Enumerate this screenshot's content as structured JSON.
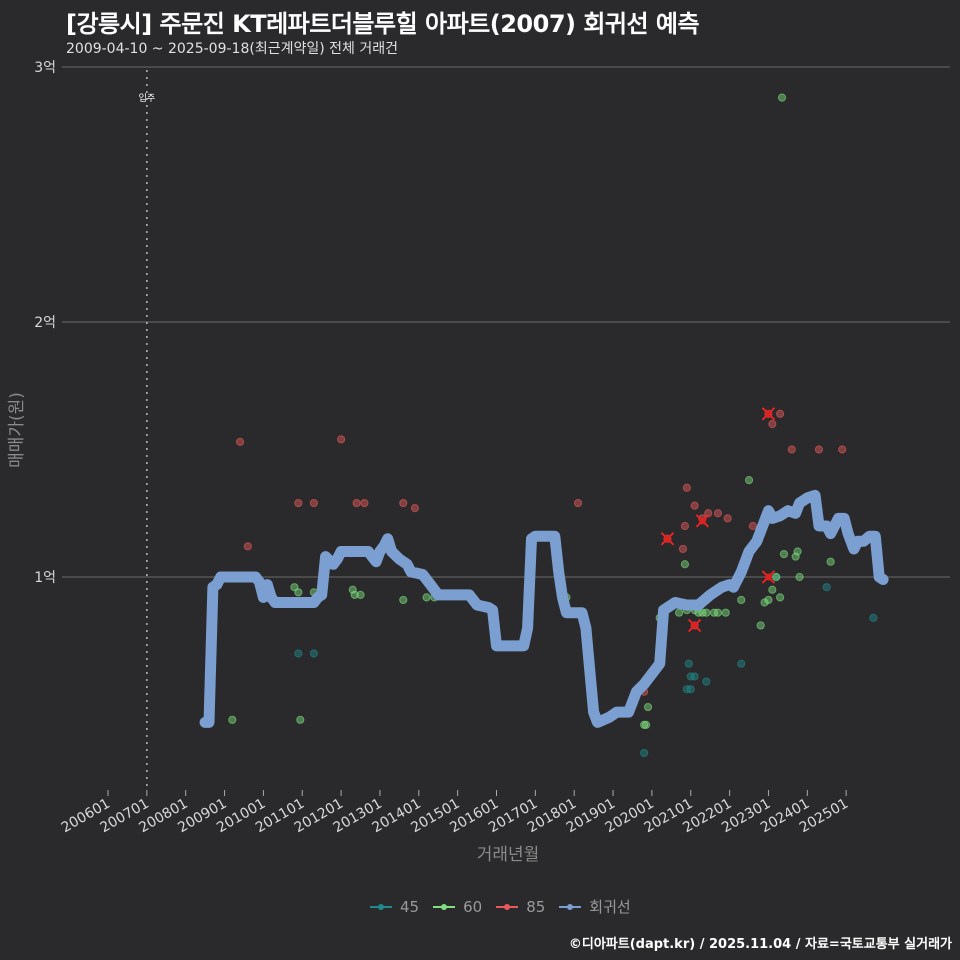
{
  "header": {
    "title": "[강릉시] 주문진 KT레파트더블루힐 아파트(2007) 회귀선 예측",
    "subtitle": "2009-04-10 ~ 2025-09-18(최근계약일) 전체 거래건"
  },
  "footer": {
    "credit": "©디아파트(dapt.kr) / 2025.11.04 / 자료=국토교통부 실거래가"
  },
  "colors": {
    "background": "#2a2a2c",
    "s45": "#1f8a8a",
    "s60": "#7ee07e",
    "s85": "#e85a5a",
    "regression": "#7b9fd0",
    "grid": "#6a6a6a",
    "marker": "#ff2020"
  },
  "legend": [
    {
      "label": "45",
      "color": "#1f8a8a"
    },
    {
      "label": "60",
      "color": "#7ee07e"
    },
    {
      "label": "85",
      "color": "#e85a5a"
    },
    {
      "label": "회귀선",
      "color": "#7b9fd0"
    }
  ],
  "chart_data": {
    "type": "scatter",
    "title": "[강릉시] 주문진 KT레파트더블루힐 아파트(2007) 회귀선 예측",
    "subtitle": "2009-04-10 ~ 2025-09-18(최근계약일) 전체 거래건",
    "xlabel": "거래년월",
    "ylabel": "매매가(원)",
    "x_ticks": [
      "200601",
      "200701",
      "200801",
      "200901",
      "201001",
      "201101",
      "201201",
      "201301",
      "201401",
      "201501",
      "201601",
      "201701",
      "201801",
      "201901",
      "202001",
      "202101",
      "202201",
      "202301",
      "202401",
      "202501"
    ],
    "y_ticks": [
      {
        "value": 100000000,
        "label": "1억"
      },
      {
        "value": 200000000,
        "label": "2억"
      },
      {
        "value": 300000000,
        "label": "3억"
      }
    ],
    "ylim": [
      13000000,
      300000000
    ],
    "grid": true,
    "legend_position": "bottom",
    "annotations": [
      {
        "x": 2007.0,
        "label": "입주",
        "type": "vline-dotted"
      }
    ],
    "series": [
      {
        "name": "45",
        "color": "#1f8a8a",
        "points": [
          [
            2010.9,
            70000000
          ],
          [
            2011.3,
            70000000
          ],
          [
            2019.8,
            31000000
          ],
          [
            2020.9,
            56000000
          ],
          [
            2021.0,
            56000000
          ],
          [
            2021.0,
            61000000
          ],
          [
            2021.1,
            61000000
          ],
          [
            2020.95,
            66000000
          ],
          [
            2021.4,
            59000000
          ],
          [
            2022.3,
            66000000
          ],
          [
            2023.2,
            100000000
          ],
          [
            2024.5,
            96000000
          ],
          [
            2025.7,
            84000000
          ]
        ]
      },
      {
        "name": "60",
        "color": "#7ee07e",
        "points": [
          [
            2009.2,
            44000000
          ],
          [
            2010.8,
            96000000
          ],
          [
            2010.9,
            94000000
          ],
          [
            2010.95,
            44000000
          ],
          [
            2011.3,
            94000000
          ],
          [
            2012.3,
            95000000
          ],
          [
            2012.35,
            93000000
          ],
          [
            2012.5,
            93000000
          ],
          [
            2013.6,
            91000000
          ],
          [
            2014.2,
            92000000
          ],
          [
            2014.4,
            92000000
          ],
          [
            2017.8,
            92000000
          ],
          [
            2019.8,
            42000000
          ],
          [
            2019.85,
            42000000
          ],
          [
            2019.9,
            49000000
          ],
          [
            2020.2,
            84000000
          ],
          [
            2020.3,
            84000000
          ],
          [
            2020.7,
            86000000
          ],
          [
            2020.85,
            105000000
          ],
          [
            2020.9,
            87000000
          ],
          [
            2021.1,
            87000000
          ],
          [
            2021.2,
            86000000
          ],
          [
            2021.3,
            86000000
          ],
          [
            2021.4,
            86000000
          ],
          [
            2021.6,
            86000000
          ],
          [
            2021.7,
            86000000
          ],
          [
            2021.9,
            86000000
          ],
          [
            2022.3,
            91000000
          ],
          [
            2022.5,
            138000000
          ],
          [
            2022.8,
            81000000
          ],
          [
            2022.9,
            90000000
          ],
          [
            2023.0,
            91000000
          ],
          [
            2023.1,
            95000000
          ],
          [
            2023.2,
            100000000
          ],
          [
            2023.3,
            92000000
          ],
          [
            2023.4,
            109000000
          ],
          [
            2023.7,
            108000000
          ],
          [
            2023.75,
            110000000
          ],
          [
            2023.8,
            100000000
          ],
          [
            2024.6,
            106000000
          ],
          [
            2023.35,
            288000000
          ]
        ]
      },
      {
        "name": "85",
        "color": "#e85a5a",
        "points": [
          [
            2009.4,
            153000000
          ],
          [
            2009.6,
            112000000
          ],
          [
            2010.9,
            129000000
          ],
          [
            2011.3,
            129000000
          ],
          [
            2012.0,
            154000000
          ],
          [
            2012.4,
            129000000
          ],
          [
            2012.6,
            129000000
          ],
          [
            2013.6,
            129000000
          ],
          [
            2013.9,
            127000000
          ],
          [
            2018.1,
            129000000
          ],
          [
            2019.8,
            55000000
          ],
          [
            2020.4,
            115000000
          ],
          [
            2020.8,
            111000000
          ],
          [
            2020.85,
            120000000
          ],
          [
            2020.9,
            135000000
          ],
          [
            2021.1,
            128000000
          ],
          [
            2021.3,
            123000000
          ],
          [
            2021.45,
            125000000
          ],
          [
            2021.7,
            125000000
          ],
          [
            2021.95,
            123000000
          ],
          [
            2022.6,
            120000000
          ],
          [
            2023.0,
            164000000
          ],
          [
            2023.1,
            160000000
          ],
          [
            2023.3,
            164000000
          ],
          [
            2023.6,
            150000000
          ],
          [
            2024.3,
            150000000
          ],
          [
            2024.9,
            150000000
          ],
          [
            2021.1,
            81000000
          ]
        ]
      },
      {
        "name": "회귀선",
        "color": "#7b9fd0",
        "type": "line",
        "points": [
          [
            2008.5,
            43000000
          ],
          [
            2008.6,
            43000000
          ],
          [
            2008.7,
            96000000
          ],
          [
            2008.8,
            97000000
          ],
          [
            2008.9,
            100000000
          ],
          [
            2009.8,
            100000000
          ],
          [
            2009.9,
            98000000
          ],
          [
            2010.0,
            92000000
          ],
          [
            2010.1,
            97000000
          ],
          [
            2010.2,
            92000000
          ],
          [
            2010.3,
            90000000
          ],
          [
            2011.3,
            90000000
          ],
          [
            2011.4,
            92000000
          ],
          [
            2011.5,
            93000000
          ],
          [
            2011.6,
            108000000
          ],
          [
            2011.8,
            105000000
          ],
          [
            2011.9,
            107000000
          ],
          [
            2012.0,
            110000000
          ],
          [
            2012.7,
            110000000
          ],
          [
            2012.8,
            108000000
          ],
          [
            2012.9,
            106000000
          ],
          [
            2013.0,
            110000000
          ],
          [
            2013.1,
            112000000
          ],
          [
            2013.2,
            115000000
          ],
          [
            2013.3,
            110000000
          ],
          [
            2013.5,
            107000000
          ],
          [
            2013.7,
            105000000
          ],
          [
            2013.8,
            102000000
          ],
          [
            2014.1,
            101000000
          ],
          [
            2014.3,
            97000000
          ],
          [
            2014.5,
            93000000
          ],
          [
            2015.3,
            93000000
          ],
          [
            2015.5,
            89000000
          ],
          [
            2015.8,
            88000000
          ],
          [
            2015.9,
            87000000
          ],
          [
            2016.0,
            73000000
          ],
          [
            2016.7,
            73000000
          ],
          [
            2016.8,
            80000000
          ],
          [
            2016.9,
            115000000
          ],
          [
            2017.0,
            116000000
          ],
          [
            2017.5,
            116000000
          ],
          [
            2017.6,
            102000000
          ],
          [
            2017.7,
            92000000
          ],
          [
            2017.8,
            86000000
          ],
          [
            2018.2,
            86000000
          ],
          [
            2018.3,
            80000000
          ],
          [
            2018.5,
            47000000
          ],
          [
            2018.6,
            43000000
          ],
          [
            2018.9,
            45000000
          ],
          [
            2019.1,
            47000000
          ],
          [
            2019.4,
            47000000
          ],
          [
            2019.5,
            51000000
          ],
          [
            2019.6,
            55000000
          ],
          [
            2019.8,
            58000000
          ],
          [
            2020.0,
            62000000
          ],
          [
            2020.2,
            66000000
          ],
          [
            2020.3,
            87000000
          ],
          [
            2020.6,
            90000000
          ],
          [
            2020.9,
            89000000
          ],
          [
            2021.2,
            89000000
          ],
          [
            2021.5,
            93000000
          ],
          [
            2021.8,
            96000000
          ],
          [
            2022.0,
            97000000
          ],
          [
            2022.1,
            96000000
          ],
          [
            2022.3,
            102000000
          ],
          [
            2022.5,
            110000000
          ],
          [
            2022.7,
            114000000
          ],
          [
            2022.9,
            122000000
          ],
          [
            2023.0,
            126000000
          ],
          [
            2023.1,
            123000000
          ],
          [
            2023.3,
            124000000
          ],
          [
            2023.5,
            126000000
          ],
          [
            2023.7,
            125000000
          ],
          [
            2023.8,
            129000000
          ],
          [
            2024.0,
            131000000
          ],
          [
            2024.2,
            132000000
          ],
          [
            2024.3,
            120000000
          ],
          [
            2024.5,
            120000000
          ],
          [
            2024.6,
            117000000
          ],
          [
            2024.8,
            123000000
          ],
          [
            2024.95,
            123000000
          ],
          [
            2025.05,
            117000000
          ],
          [
            2025.2,
            111000000
          ],
          [
            2025.3,
            114000000
          ],
          [
            2025.45,
            114000000
          ],
          [
            2025.6,
            116000000
          ],
          [
            2025.75,
            116000000
          ],
          [
            2025.85,
            100000000
          ],
          [
            2025.95,
            99000000
          ]
        ]
      }
    ],
    "highlighted_x_markers": [
      [
        2020.4,
        115000000
      ],
      [
        2021.3,
        122000000
      ],
      [
        2021.1,
        81000000
      ],
      [
        2023.0,
        164000000
      ],
      [
        2023.0,
        100000000
      ]
    ]
  }
}
